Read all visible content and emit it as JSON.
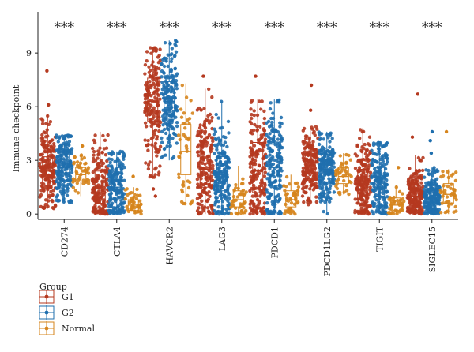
{
  "chart_data": {
    "type": "box",
    "title": "",
    "xlabel": "",
    "ylabel": "Immune checkpoint",
    "ylim": [
      -0.3,
      11.3
    ],
    "yticks": [
      0,
      3,
      6,
      9
    ],
    "grid": false,
    "categories": [
      "CD274",
      "CTLA4",
      "HAVCR2",
      "LAG3",
      "PDCD1",
      "PDCD1LG2",
      "TIGIT",
      "SIGLEC15"
    ],
    "significance": [
      "***",
      "***",
      "***",
      "***",
      "***",
      "***",
      "***",
      "***"
    ],
    "legend": {
      "title": "Group",
      "placement": "bottom-left"
    },
    "series": [
      {
        "name": "G1",
        "color": "#b5391f",
        "boxes": [
          {
            "min": 0.3,
            "q1": 1.6,
            "median": 2.4,
            "q3": 3.2,
            "max": 5.6,
            "outliers": [
              6.1,
              8.0
            ]
          },
          {
            "min": 0.0,
            "q1": 0.6,
            "median": 1.4,
            "q3": 2.4,
            "max": 4.6,
            "outliers": []
          },
          {
            "min": 2.0,
            "q1": 5.2,
            "median": 6.3,
            "q3": 7.6,
            "max": 9.3,
            "outliers": [
              1.0,
              1.4
            ]
          },
          {
            "min": 0.0,
            "q1": 1.5,
            "median": 2.5,
            "q3": 3.9,
            "max": 7.0,
            "outliers": [
              7.7
            ]
          },
          {
            "min": 0.0,
            "q1": 1.2,
            "median": 2.4,
            "q3": 4.0,
            "max": 6.4,
            "outliers": [
              7.7
            ]
          },
          {
            "min": 0.5,
            "q1": 2.0,
            "median": 2.7,
            "q3": 3.4,
            "max": 4.9,
            "outliers": [
              5.8,
              7.2
            ]
          },
          {
            "min": 0.0,
            "q1": 0.8,
            "median": 1.6,
            "q3": 2.5,
            "max": 4.8,
            "outliers": []
          },
          {
            "min": 0.0,
            "q1": 0.5,
            "median": 1.0,
            "q3": 1.6,
            "max": 3.3,
            "outliers": [
              4.3,
              6.7
            ]
          }
        ]
      },
      {
        "name": "G2",
        "color": "#1f6fae",
        "boxes": [
          {
            "min": 0.6,
            "q1": 1.9,
            "median": 2.6,
            "q3": 3.3,
            "max": 4.4,
            "outliers": []
          },
          {
            "min": 0.0,
            "q1": 0.8,
            "median": 1.5,
            "q3": 2.3,
            "max": 3.5,
            "outliers": []
          },
          {
            "min": 3.0,
            "q1": 5.3,
            "median": 6.3,
            "q3": 7.4,
            "max": 9.7,
            "outliers": []
          },
          {
            "min": 0.0,
            "q1": 1.3,
            "median": 2.2,
            "q3": 3.2,
            "max": 6.3,
            "outliers": []
          },
          {
            "min": 0.0,
            "q1": 1.6,
            "median": 2.6,
            "q3": 3.9,
            "max": 6.4,
            "outliers": []
          },
          {
            "min": 0.0,
            "q1": 1.8,
            "median": 2.5,
            "q3": 3.3,
            "max": 4.6,
            "outliers": []
          },
          {
            "min": 0.0,
            "q1": 1.0,
            "median": 1.8,
            "q3": 2.6,
            "max": 4.0,
            "outliers": []
          },
          {
            "min": 0.0,
            "q1": 0.5,
            "median": 0.9,
            "q3": 1.4,
            "max": 2.6,
            "outliers": [
              3.4,
              4.1,
              4.6
            ]
          }
        ]
      },
      {
        "name": "Normal",
        "color": "#d6851d",
        "boxes": [
          {
            "min": 1.0,
            "q1": 1.8,
            "median": 2.2,
            "q3": 2.6,
            "max": 3.3,
            "outliers": [
              3.8
            ]
          },
          {
            "min": 0.0,
            "q1": 0.2,
            "median": 0.5,
            "q3": 0.8,
            "max": 1.5,
            "outliers": [
              2.1
            ]
          },
          {
            "min": 0.5,
            "q1": 2.2,
            "median": 3.5,
            "q3": 5.0,
            "max": 7.3,
            "outliers": []
          },
          {
            "min": 0.0,
            "q1": 0.4,
            "median": 0.8,
            "q3": 1.3,
            "max": 2.7,
            "outliers": []
          },
          {
            "min": 0.0,
            "q1": 0.4,
            "median": 0.8,
            "q3": 1.3,
            "max": 2.2,
            "outliers": []
          },
          {
            "min": 1.1,
            "q1": 1.7,
            "median": 2.1,
            "q3": 2.6,
            "max": 3.4,
            "outliers": []
          },
          {
            "min": 0.0,
            "q1": 0.2,
            "median": 0.5,
            "q3": 0.9,
            "max": 1.6,
            "outliers": [
              2.6
            ]
          },
          {
            "min": 0.0,
            "q1": 0.6,
            "median": 1.1,
            "q3": 1.7,
            "max": 2.5,
            "outliers": [
              4.6
            ]
          }
        ]
      }
    ]
  }
}
